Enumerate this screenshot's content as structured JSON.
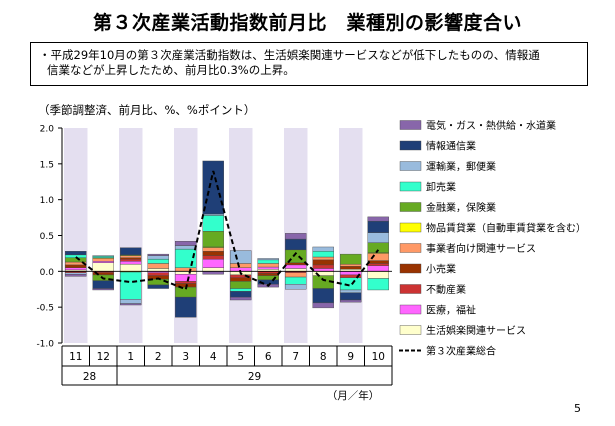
{
  "page": {
    "title": "第３次産業活動指数前月比　業種別の影響度合い",
    "note_line1": "・平成29年10月の第３次産業活動指数は、生活娯楽関連サービスなどが低下したものの、情報通",
    "note_line2": "信業などが上昇したため、前月比0.3%の上昇。",
    "unit_label": "（季節調整済、前月比、%、%ポイント）",
    "page_number": "5"
  },
  "chart_data": {
    "type": "bar",
    "stacked": true,
    "categories": [
      "11",
      "12",
      "1",
      "2",
      "3",
      "4",
      "5",
      "6",
      "7",
      "8",
      "9",
      "10"
    ],
    "year_groups": [
      {
        "label": "28",
        "months": [
          "11",
          "12"
        ]
      },
      {
        "label": "29",
        "months": [
          "1",
          "2",
          "3",
          "4",
          "5",
          "6",
          "7",
          "8",
          "9",
          "10"
        ]
      }
    ],
    "xlabel": "（月／年）",
    "ylim": [
      -1.0,
      2.0
    ],
    "yticks": [
      "2.0",
      "1.5",
      "1.0",
      "0.5",
      "0.0",
      "-0.5",
      "-1.0"
    ],
    "ytick_values": [
      2.0,
      1.5,
      1.0,
      0.5,
      0.0,
      -0.5,
      -1.0
    ],
    "shaded_categories": [
      "11",
      "1",
      "3",
      "5",
      "7",
      "9"
    ],
    "legend_position": "right",
    "series": [
      {
        "name": "生活娯楽関連サービス",
        "color": "#ffffcc",
        "values": [
          0.02,
          0.12,
          0.1,
          0.04,
          -0.04,
          0.05,
          -0.05,
          0.03,
          0.04,
          -0.06,
          0.03,
          -0.1
        ]
      },
      {
        "name": "医療，福祉",
        "color": "#ff66ff",
        "values": [
          0.03,
          0.02,
          0.04,
          -0.02,
          -0.1,
          0.12,
          0.05,
          0.03,
          0.05,
          0.04,
          -0.05,
          0.08
        ]
      },
      {
        "name": "不動産業",
        "color": "#cc3333",
        "values": [
          -0.02,
          -0.02,
          0.03,
          -0.04,
          -0.03,
          0.05,
          -0.04,
          -0.03,
          -0.02,
          0.05,
          -0.04,
          0.03
        ]
      },
      {
        "name": "小売業",
        "color": "#993300",
        "values": [
          0.04,
          -0.03,
          0.02,
          -0.05,
          -0.05,
          0.06,
          -0.05,
          -0.03,
          0.03,
          0.07,
          0.04,
          0.04
        ]
      },
      {
        "name": "事業者向け関連サービス",
        "color": "#ff9966",
        "values": [
          0.04,
          0.04,
          0.03,
          0.07,
          0.05,
          0.05,
          0.06,
          0.05,
          -0.06,
          0.04,
          0.03,
          0.1
        ]
      },
      {
        "name": "物品賃貸業（自動車賃貸業を含む）",
        "color": "#ffff00",
        "values": [
          0.0,
          0.01,
          -0.01,
          0.0,
          0.0,
          0.01,
          0.0,
          0.0,
          0.0,
          0.0,
          0.0,
          0.01
        ]
      },
      {
        "name": "金融業，保険業",
        "color": "#66aa22",
        "values": [
          0.06,
          -0.08,
          0.01,
          -0.08,
          -0.14,
          0.22,
          -0.1,
          -0.06,
          0.18,
          -0.18,
          0.14,
          0.14
        ]
      },
      {
        "name": "卸売業",
        "color": "#33ffcc",
        "values": [
          0.04,
          0.02,
          -0.38,
          0.06,
          0.26,
          0.22,
          -0.04,
          0.05,
          -0.1,
          0.08,
          -0.17,
          -0.16
        ]
      },
      {
        "name": "運輸業，郵便業",
        "color": "#99bbdd",
        "values": [
          -0.02,
          0.01,
          -0.06,
          0.05,
          0.05,
          0.02,
          0.18,
          0.02,
          -0.07,
          0.06,
          -0.04,
          0.14
        ]
      },
      {
        "name": "情報通信業",
        "color": "#1f3f77",
        "values": [
          0.05,
          -0.11,
          0.1,
          -0.05,
          -0.28,
          0.74,
          -0.08,
          -0.06,
          0.15,
          -0.2,
          -0.1,
          0.16
        ]
      },
      {
        "name": "電気・ガス・熱供給・水道業",
        "color": "#8866aa",
        "values": [
          -0.03,
          -0.02,
          -0.02,
          0.02,
          0.06,
          -0.04,
          -0.04,
          -0.04,
          0.08,
          -0.07,
          -0.03,
          0.06
        ]
      }
    ],
    "total_line": {
      "name": "第３次産業総合",
      "values": [
        0.2,
        -0.1,
        -0.15,
        -0.1,
        -0.25,
        1.4,
        -0.03,
        -0.2,
        0.25,
        -0.12,
        -0.2,
        0.3
      ]
    },
    "legend_order": [
      "電気・ガス・熱供給・水道業",
      "情報通信業",
      "運輸業，郵便業",
      "卸売業",
      "金融業，保険業",
      "物品賃貸業（自動車賃貸業を含む）",
      "事業者向け関連サービス",
      "小売業",
      "不動産業",
      "医療，福祉",
      "生活娯楽関連サービス",
      "第３次産業総合"
    ]
  }
}
